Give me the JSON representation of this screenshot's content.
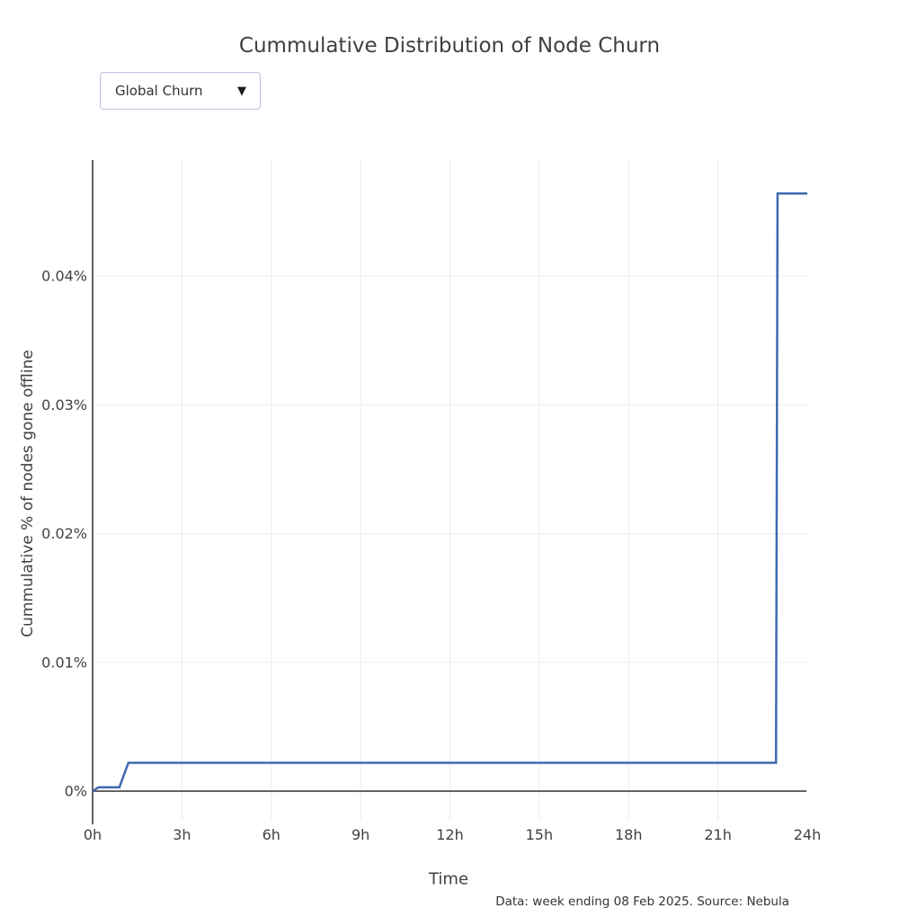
{
  "page": {
    "title": "Cummulative Distribution of Node Churn",
    "footnote": "Data: week ending 08 Feb 2025. Source: Nebula"
  },
  "controls": {
    "series_dropdown": {
      "selected": "Global Churn",
      "arrow_icon": "▼"
    }
  },
  "chart_data": {
    "type": "line",
    "title": "Cummulative Distribution of Node Churn",
    "xlabel": "Time",
    "ylabel": "Cummulative % of nodes gone offline",
    "x_unit": "hours",
    "y_unit": "percent of nodes",
    "xlim": [
      0,
      24
    ],
    "ylim": [
      0,
      0.049
    ],
    "grid": true,
    "legend": "none",
    "x_ticks": {
      "values": [
        0,
        3,
        6,
        9,
        12,
        15,
        18,
        21,
        24
      ],
      "labels": [
        "0h",
        "3h",
        "6h",
        "9h",
        "12h",
        "15h",
        "18h",
        "21h",
        "24h"
      ]
    },
    "y_ticks": {
      "values": [
        0,
        0.01,
        0.02,
        0.03,
        0.04
      ],
      "labels": [
        "0%",
        "0.01%",
        "0.02%",
        "0.03%",
        "0.04%"
      ]
    },
    "x_grid_values": [
      3,
      6,
      9,
      12,
      15,
      18,
      21
    ],
    "y_grid_values": [
      0.01,
      0.02,
      0.03,
      0.04
    ],
    "series": [
      {
        "name": "Global Churn",
        "color": "#3e6ab1",
        "points": [
          [
            0,
            0
          ],
          [
            0.2,
            0.0003
          ],
          [
            0.9,
            0.0003
          ],
          [
            1.2,
            0.0022
          ],
          [
            22.95,
            0.0022
          ],
          [
            23.0,
            0.0464
          ],
          [
            24,
            0.0464
          ]
        ]
      }
    ],
    "colors": {
      "grid": "#ececec",
      "axis": "#636363",
      "tick_label": "#414141"
    }
  }
}
